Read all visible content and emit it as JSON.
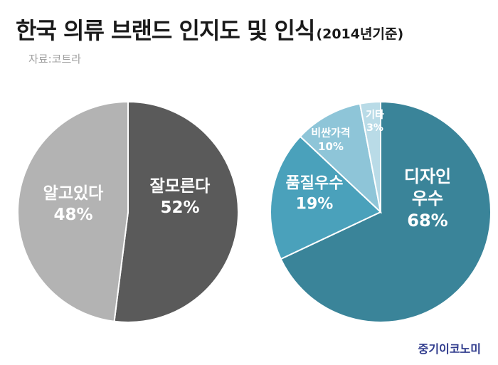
{
  "title": {
    "main": "한국 의류 브랜드 인지도 및 인식",
    "suffix": "(2014년기준)"
  },
  "source": "자료:코트라",
  "publisher": "중기이코노미",
  "chart_data": [
    {
      "type": "pie",
      "title": "",
      "slices": [
        {
          "label": "잘모른다",
          "value": 52,
          "display": "52%",
          "color": "#5a5a5a"
        },
        {
          "label": "알고있다",
          "value": 48,
          "display": "48%",
          "color": "#b3b3b3"
        }
      ]
    },
    {
      "type": "pie",
      "title": "",
      "slices": [
        {
          "label": "디자인 우수",
          "value": 68,
          "display": "68%",
          "color": "#3a8499"
        },
        {
          "label": "품질우수",
          "value": 19,
          "display": "19%",
          "color": "#4aa1bb"
        },
        {
          "label": "비싼가격",
          "value": 10,
          "display": "10%",
          "color": "#8ec5d8"
        },
        {
          "label": "기타",
          "value": 3,
          "display": "3%",
          "color": "#b9dbe7"
        }
      ]
    }
  ]
}
